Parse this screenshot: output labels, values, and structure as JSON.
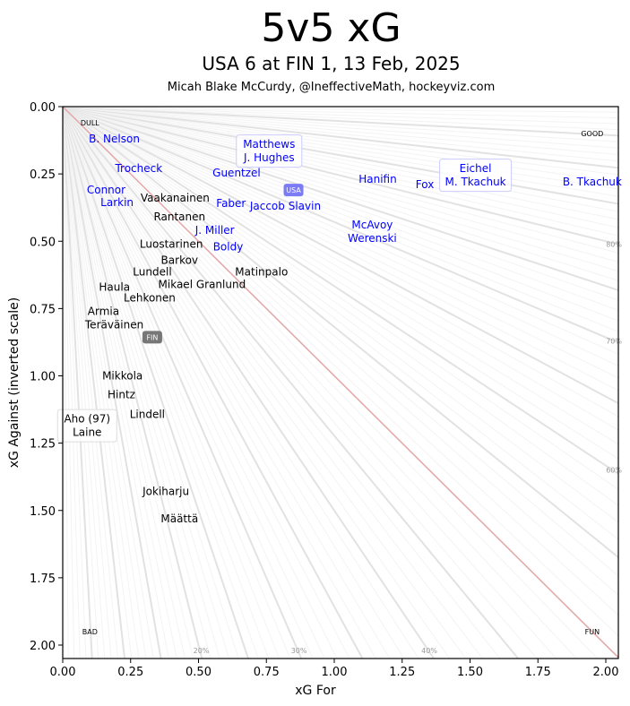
{
  "title": "5v5 xG",
  "subtitle": "USA 6 at FIN 1, 13 Feb, 2025",
  "credit": "Micah Blake McCurdy, @IneffectiveMath, hockeyviz.com",
  "chart_data": {
    "type": "scatter",
    "xlabel": "xG For",
    "ylabel": "xG Against (inverted scale)",
    "xlim": [
      0,
      2.05
    ],
    "ylim": [
      2.05,
      0
    ],
    "y_inverted": true,
    "xticks": [
      "0.00",
      "0.25",
      "0.50",
      "0.75",
      "1.00",
      "1.25",
      "1.50",
      "1.75",
      "2.00"
    ],
    "yticks": [
      "0.00",
      "0.25",
      "0.50",
      "0.75",
      "1.00",
      "1.25",
      "1.50",
      "1.75",
      "2.00"
    ],
    "corner_labels": {
      "top_left": "DULL",
      "top_right": "GOOD",
      "bottom_left": "BAD",
      "bottom_right": "FUN"
    },
    "ray_labels": [
      "20%",
      "30%",
      "40%",
      "60%",
      "70%",
      "80%"
    ],
    "team_colors": {
      "USA": "#0000ff",
      "FIN": "#000000"
    },
    "team_badges": [
      {
        "label": "USA",
        "xgf": 0.85,
        "xga": 0.31,
        "color": "#7b7bf5"
      },
      {
        "label": "FIN",
        "xgf": 0.31,
        "xga": 0.85,
        "color": "#777777"
      }
    ],
    "points": [
      {
        "lines": [
          "B. Nelson"
        ],
        "team": "USA",
        "xgf": 0.19,
        "xga": 0.12
      },
      {
        "lines": [
          "Trocheck"
        ],
        "team": "USA",
        "xgf": 0.28,
        "xga": 0.23
      },
      {
        "lines": [
          "Connor"
        ],
        "team": "USA",
        "xgf": 0.16,
        "xga": 0.31
      },
      {
        "lines": [
          "Larkin"
        ],
        "team": "USA",
        "xgf": 0.2,
        "xga": 0.35
      },
      {
        "lines": [
          "Matthews",
          "J. Hughes"
        ],
        "team": "USA",
        "xgf": 0.76,
        "xga": 0.165,
        "boxed": true
      },
      {
        "lines": [
          "Guentzel"
        ],
        "team": "USA",
        "xgf": 0.66,
        "xga": 0.22
      },
      {
        "lines": [
          "Faber"
        ],
        "team": "USA",
        "xgf": 0.61,
        "xga": 0.36
      },
      {
        "lines": [
          "Jaccob Slavin"
        ],
        "team": "USA",
        "xgf": 0.82,
        "xga": 0.37
      },
      {
        "lines": [
          "J. Miller"
        ],
        "team": "USA",
        "xgf": 0.56,
        "xga": 0.46
      },
      {
        "lines": [
          "Boldy"
        ],
        "team": "USA",
        "xgf": 0.51,
        "xga": 0.52
      },
      {
        "lines": [
          "Hanifin"
        ],
        "team": "USA",
        "xgf": 1.16,
        "xga": 0.27
      },
      {
        "lines": [
          "Fox"
        ],
        "team": "USA",
        "xgf": 1.36,
        "xga": 0.29
      },
      {
        "lines": [
          "Eichel",
          "M. Tkachuk"
        ],
        "team": "USA",
        "xgf": 1.52,
        "xga": 0.255,
        "boxed": true
      },
      {
        "lines": [
          "B. Tkachuk"
        ],
        "team": "USA",
        "xgf": 1.95,
        "xga": 0.28
      },
      {
        "lines": [
          "McAvoy"
        ],
        "team": "USA",
        "xgf": 1.14,
        "xga": 0.44
      },
      {
        "lines": [
          "Werenski"
        ],
        "team": "USA",
        "xgf": 1.14,
        "xga": 0.49
      },
      {
        "lines": [
          "Vaakanainen"
        ],
        "team": "FIN",
        "xgf": 0.45,
        "xga": 0.34
      },
      {
        "lines": [
          "Rantanen"
        ],
        "team": "FIN",
        "xgf": 0.43,
        "xga": 0.41
      },
      {
        "lines": [
          "Luostarinen"
        ],
        "team": "FIN",
        "xgf": 0.4,
        "xga": 0.51
      },
      {
        "lines": [
          "Barkov"
        ],
        "team": "FIN",
        "xgf": 0.43,
        "xga": 0.57
      },
      {
        "lines": [
          "Lundell"
        ],
        "team": "FIN",
        "xgf": 0.33,
        "xga": 0.64
      },
      {
        "lines": [
          "Mikael Granlund"
        ],
        "team": "FIN",
        "xgf": 0.46,
        "xga": 0.66
      },
      {
        "lines": [
          "Matinpalo"
        ],
        "team": "FIN",
        "xgf": 0.6,
        "xga": 0.64
      },
      {
        "lines": [
          "Haula"
        ],
        "team": "FIN",
        "xgf": 0.25,
        "xga": 0.67
      },
      {
        "lines": [
          "Lehkonen"
        ],
        "team": "FIN",
        "xgf": 0.32,
        "xga": 0.7
      },
      {
        "lines": [
          "Armia"
        ],
        "team": "FIN",
        "xgf": 0.15,
        "xga": 0.76
      },
      {
        "lines": [
          "Teräväinen"
        ],
        "team": "FIN",
        "xgf": 0.19,
        "xga": 0.81
      },
      {
        "lines": [
          "Mikkola"
        ],
        "team": "FIN",
        "xgf": 0.22,
        "xga": 1.0
      },
      {
        "lines": [
          "Hintz"
        ],
        "team": "FIN",
        "xgf": 0.17,
        "xga": 1.13
      },
      {
        "lines": [
          "Lindell"
        ],
        "team": "FIN",
        "xgf": 0.12,
        "xga": 1.15
      },
      {
        "lines": [
          "Aho (97)",
          "Laine"
        ],
        "team": "FIN",
        "xgf": 0.09,
        "xga": 1.185,
        "boxed": true
      },
      {
        "lines": [
          "Jokiharju"
        ],
        "team": "FIN",
        "xgf": 0.38,
        "xga": 1.43
      },
      {
        "lines": [
          "Määttä"
        ],
        "team": "FIN",
        "xgf": 0.43,
        "xga": 1.53
      }
    ]
  }
}
